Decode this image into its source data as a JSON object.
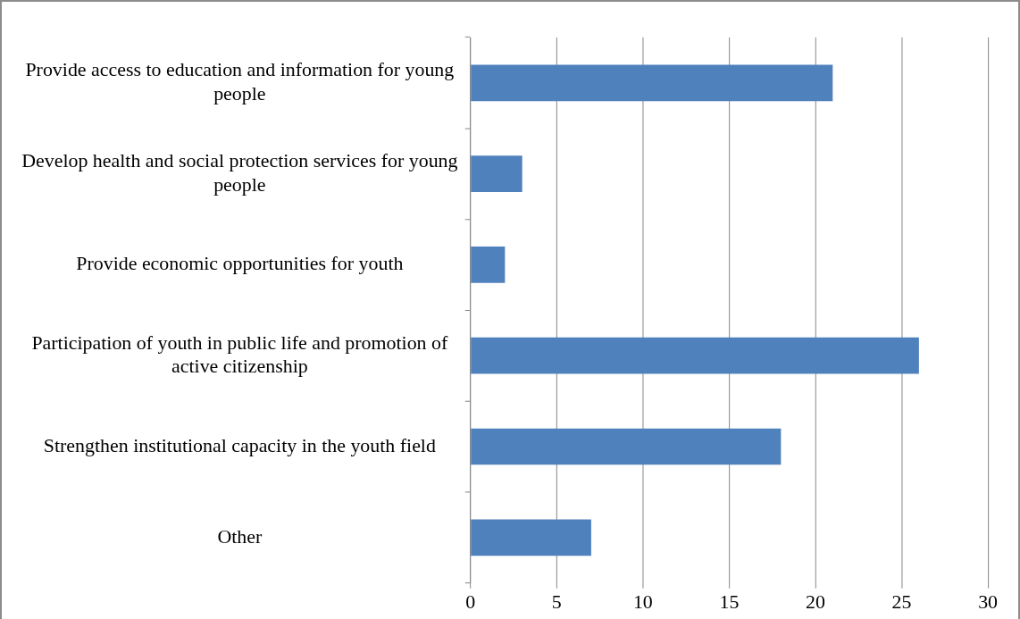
{
  "chart_data": {
    "type": "bar",
    "orientation": "horizontal",
    "categories": [
      "Provide access to education and information for young people",
      "Develop health and social protection services for young people",
      "Provide economic opportunities for youth",
      "Participation of youth in public life and promotion of active citizenship",
      "Strengthen institutional capacity in the youth field",
      "Other"
    ],
    "values": [
      21,
      3,
      2,
      26,
      18,
      7
    ],
    "color": "#4f81bd",
    "xlim": [
      0,
      30
    ],
    "xticks": [
      0,
      5,
      10,
      15,
      20,
      25,
      30
    ],
    "grid": "x",
    "legend": false
  }
}
